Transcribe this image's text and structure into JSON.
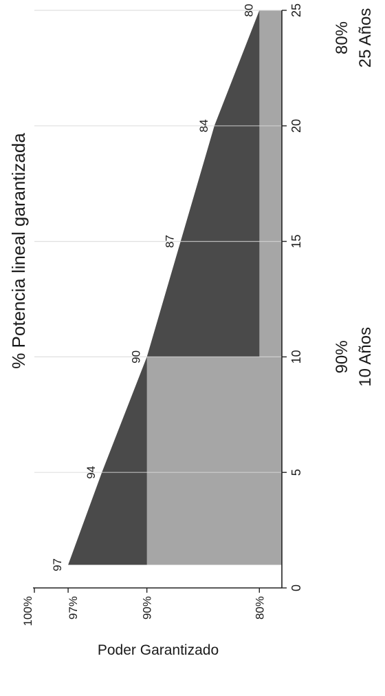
{
  "chart_data": {
    "type": "area",
    "title": "% Potencia lineal garantizada",
    "ylabel": "Poder Garantizado",
    "xlabel": "",
    "xlim": [
      0,
      25
    ],
    "ylim": [
      78,
      100
    ],
    "x_ticks": [
      0,
      5,
      10,
      15,
      20,
      25
    ],
    "y_ticks": [
      {
        "value": 100,
        "label": "100%"
      },
      {
        "value": 97,
        "label": "97%"
      },
      {
        "value": 90,
        "label": "90%"
      },
      {
        "value": 80,
        "label": "80%"
      }
    ],
    "series": [
      {
        "type": "step",
        "x": [
          1,
          10,
          10,
          25
        ],
        "y": [
          90,
          90,
          80,
          80
        ],
        "color": "#a6a6a6"
      },
      {
        "type": "line",
        "x": [
          1,
          5,
          10,
          15,
          20,
          25
        ],
        "y": [
          97,
          94,
          90,
          87,
          84,
          80
        ],
        "color": "#4a4a4a"
      }
    ],
    "data_labels": [
      {
        "x": 1,
        "y": 97,
        "label": "97"
      },
      {
        "x": 5,
        "y": 94,
        "label": "94"
      },
      {
        "x": 10,
        "y": 90,
        "label": "90"
      },
      {
        "x": 15,
        "y": 87,
        "label": "87"
      },
      {
        "x": 20,
        "y": 84,
        "label": "84"
      },
      {
        "x": 25,
        "y": 80,
        "label": "80"
      }
    ],
    "annotations": [
      {
        "x": 10,
        "lines": [
          "90%",
          "10 Años"
        ]
      },
      {
        "x": 25,
        "lines": [
          "80%",
          "25 Años"
        ]
      }
    ],
    "grid": true
  }
}
